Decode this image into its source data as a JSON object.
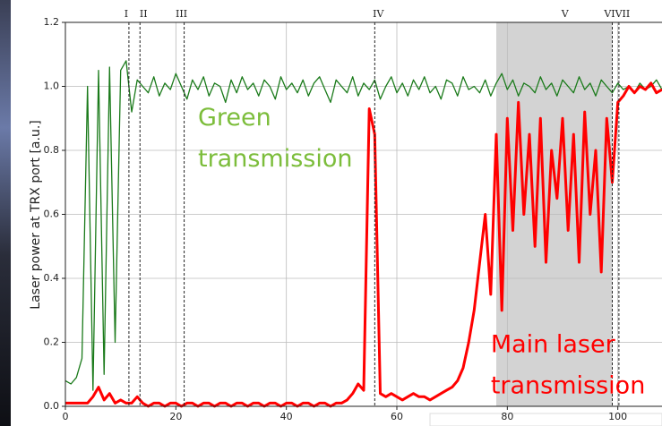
{
  "chart_data": {
    "type": "line",
    "y_label": "Laser power at TRX port [a.u.]",
    "x": [
      0,
      1,
      2,
      3,
      4,
      5,
      6,
      7,
      8,
      9,
      10,
      11,
      12,
      13,
      14,
      15,
      16,
      17,
      18,
      19,
      20,
      21,
      22,
      23,
      24,
      25,
      26,
      27,
      28,
      29,
      30,
      31,
      32,
      33,
      34,
      35,
      36,
      37,
      38,
      39,
      40,
      41,
      42,
      43,
      44,
      45,
      46,
      47,
      48,
      49,
      50,
      51,
      52,
      53,
      54,
      55,
      56,
      57,
      58,
      59,
      60,
      61,
      62,
      63,
      64,
      65,
      66,
      67,
      68,
      69,
      70,
      71,
      72,
      73,
      74,
      75,
      76,
      77,
      78,
      79,
      80,
      81,
      82,
      83,
      84,
      85,
      86,
      87,
      88,
      89,
      90,
      91,
      92,
      93,
      94,
      95,
      96,
      97,
      98,
      99,
      100,
      101,
      102,
      103,
      104,
      105,
      106,
      107,
      108
    ],
    "series": [
      {
        "color": "#1a7a1a",
        "values": [
          0.08,
          0.07,
          0.09,
          0.15,
          1.0,
          0.05,
          1.05,
          0.1,
          1.06,
          0.2,
          1.05,
          1.08,
          0.92,
          1.02,
          1.0,
          0.98,
          1.03,
          0.97,
          1.01,
          0.99,
          1.04,
          1.0,
          0.96,
          1.02,
          0.99,
          1.03,
          0.97,
          1.01,
          1.0,
          0.95,
          1.02,
          0.98,
          1.03,
          0.99,
          1.01,
          0.97,
          1.02,
          1.0,
          0.96,
          1.03,
          0.99,
          1.01,
          0.98,
          1.02,
          0.97,
          1.01,
          1.03,
          0.99,
          0.95,
          1.02,
          1.0,
          0.98,
          1.03,
          0.97,
          1.01,
          0.99,
          1.02,
          0.96,
          1.0,
          1.03,
          0.98,
          1.01,
          0.97,
          1.02,
          0.99,
          1.03,
          0.98,
          1.0,
          0.96,
          1.02,
          1.01,
          0.97,
          1.03,
          0.99,
          1.0,
          0.98,
          1.02,
          0.97,
          1.01,
          1.04,
          0.99,
          1.02,
          0.97,
          1.01,
          1.0,
          0.98,
          1.03,
          0.99,
          1.01,
          0.97,
          1.02,
          1.0,
          0.98,
          1.03,
          0.99,
          1.01,
          0.97,
          1.02,
          1.0,
          0.98,
          1.01,
          0.99,
          1.0,
          0.98,
          1.01,
          0.99,
          1.0,
          1.02,
          0.99
        ]
      },
      {
        "color": "#ff0000",
        "values": [
          0.01,
          0.01,
          0.01,
          0.01,
          0.01,
          0.03,
          0.06,
          0.02,
          0.04,
          0.01,
          0.02,
          0.01,
          0.01,
          0.03,
          0.01,
          0.0,
          0.01,
          0.01,
          0.0,
          0.01,
          0.01,
          0.0,
          0.01,
          0.01,
          0.0,
          0.01,
          0.01,
          0.0,
          0.01,
          0.01,
          0.0,
          0.01,
          0.01,
          0.0,
          0.01,
          0.01,
          0.0,
          0.01,
          0.01,
          0.0,
          0.01,
          0.01,
          0.0,
          0.01,
          0.01,
          0.0,
          0.01,
          0.01,
          0.0,
          0.01,
          0.01,
          0.02,
          0.04,
          0.07,
          0.05,
          0.93,
          0.85,
          0.04,
          0.03,
          0.04,
          0.03,
          0.02,
          0.03,
          0.04,
          0.03,
          0.03,
          0.02,
          0.03,
          0.04,
          0.05,
          0.06,
          0.08,
          0.12,
          0.2,
          0.3,
          0.45,
          0.6,
          0.35,
          0.85,
          0.3,
          0.9,
          0.55,
          0.95,
          0.6,
          0.85,
          0.5,
          0.9,
          0.45,
          0.8,
          0.65,
          0.9,
          0.55,
          0.85,
          0.45,
          0.92,
          0.6,
          0.8,
          0.42,
          0.9,
          0.7,
          0.95,
          0.97,
          1.0,
          0.98,
          1.0,
          0.99,
          1.01,
          0.98,
          0.99
        ]
      }
    ],
    "xlim": [
      0,
      108
    ],
    "ylim": [
      0,
      1.2
    ],
    "xticks": [
      0,
      20,
      40,
      60,
      80,
      100
    ],
    "yticks": [
      {
        "value": 0,
        "label": "0.0"
      },
      {
        "value": 0.2,
        "label": "0.2"
      },
      {
        "value": 0.4,
        "label": "0.4"
      },
      {
        "value": 0.6,
        "label": "0.6"
      },
      {
        "value": 0.8,
        "label": "0.8"
      },
      {
        "value": 1,
        "label": "1.0"
      },
      {
        "value": 1.2,
        "label": "1.2"
      }
    ],
    "grid": true,
    "markers": [
      {
        "label": "I",
        "x": 11.5
      },
      {
        "label": "II",
        "x": 13.5
      },
      {
        "label": "III",
        "x": 21.5
      },
      {
        "label": "IV",
        "x": 56
      },
      {
        "label": "VI",
        "x": 99
      },
      {
        "label": "VII",
        "x": 100.2
      }
    ],
    "shaded_region": {
      "x": [
        78,
        99
      ],
      "label": "V",
      "color": "#d3d3d3"
    },
    "annotations": [
      {
        "lines": [
          "Green",
          "transmission"
        ],
        "color": "#7cbd3b",
        "x": 24,
        "y": 0.9
      },
      {
        "lines": [
          "Main laser",
          "transmission"
        ],
        "color": "#ff0000",
        "x": 77,
        "y": 0.19
      }
    ]
  }
}
